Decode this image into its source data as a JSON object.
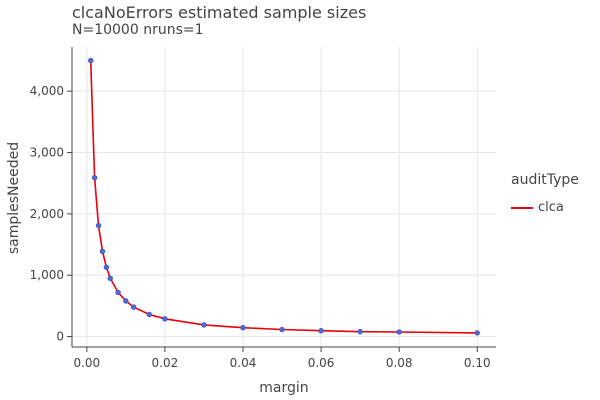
{
  "chart_data": {
    "type": "line",
    "title": "clcaNoErrors estimated sample sizes",
    "subtitle": "N=10000 nruns=1",
    "xlabel": "margin",
    "ylabel": "samplesNeeded",
    "xlim": [
      -0.0038,
      0.1048
    ],
    "ylim": [
      -170,
      4720
    ],
    "xticks": [
      0.0,
      0.02,
      0.04,
      0.06,
      0.08,
      0.1
    ],
    "xtick_labels": [
      "0.00",
      "0.02",
      "0.04",
      "0.06",
      "0.08",
      "0.10"
    ],
    "yticks": [
      0,
      1000,
      2000,
      3000,
      4000
    ],
    "ytick_labels": [
      "0",
      "1,000",
      "2,000",
      "3,000",
      "4,000"
    ],
    "grid": true,
    "legend": {
      "title": "auditType",
      "placement": "right"
    },
    "series": [
      {
        "name": "clca",
        "color": "#e8000b",
        "marker_color": "#4f6bd9",
        "x": [
          0.001,
          0.002,
          0.003,
          0.004,
          0.005,
          0.006,
          0.008,
          0.01,
          0.012,
          0.016,
          0.02,
          0.03,
          0.04,
          0.05,
          0.06,
          0.07,
          0.08,
          0.1
        ],
        "y": [
          4500,
          2590,
          1810,
          1390,
          1130,
          950,
          720,
          580,
          480,
          360,
          290,
          190,
          145,
          115,
          95,
          80,
          75,
          60
        ]
      }
    ]
  }
}
